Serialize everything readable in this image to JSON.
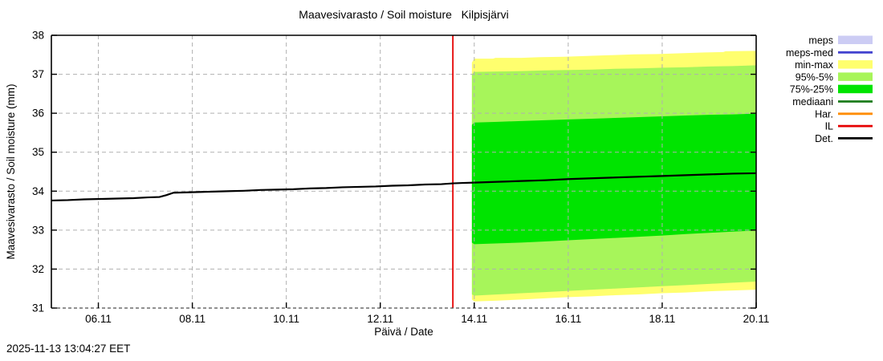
{
  "footer": {
    "timestamp": "2025-11-13 13:04:27 EET"
  },
  "chart_data": {
    "type": "line",
    "title": "Maavesivarasto / Soil moisture   Kilpisjärvi",
    "xlabel": "Päivä / Date",
    "ylabel": "Maavesivarasto / Soil moisture (mm)",
    "ylim": [
      31,
      38
    ],
    "x_range_days": [
      0,
      15
    ],
    "x_origin_note": "day 0 = 05.11 00:00",
    "grid": true,
    "legend_position": "outside-right-top",
    "colors": {
      "grid": "#b0b0b0",
      "axis": "#000000",
      "background": "#ffffff"
    },
    "y_ticks": [
      31,
      32,
      33,
      34,
      35,
      36,
      37,
      38
    ],
    "x_ticks": [
      {
        "day": 1,
        "label": "06.11"
      },
      {
        "day": 3,
        "label": "08.11"
      },
      {
        "day": 5,
        "label": "10.11"
      },
      {
        "day": 7,
        "label": "12.11"
      },
      {
        "day": 9,
        "label": "14.11"
      },
      {
        "day": 11,
        "label": "16.11"
      },
      {
        "day": 13,
        "label": "18.11"
      },
      {
        "day": 15,
        "label": "20.11"
      }
    ],
    "now_line": {
      "day": 8.545,
      "color": "#e60000",
      "label": "IL"
    },
    "bands": [
      {
        "label": "min-max",
        "color": "#ffff6e",
        "upper": [
          [
            8.95,
            37.3
          ],
          [
            9.0,
            37.4
          ],
          [
            9.4,
            37.4
          ],
          [
            9.45,
            37.42
          ],
          [
            10.0,
            37.42
          ],
          [
            10.4,
            37.44
          ],
          [
            10.9,
            37.45
          ],
          [
            11.4,
            37.47
          ],
          [
            11.9,
            37.49
          ],
          [
            12.4,
            37.51
          ],
          [
            12.9,
            37.52
          ],
          [
            13.4,
            37.54
          ],
          [
            13.9,
            37.56
          ],
          [
            14.3,
            37.57
          ],
          [
            14.35,
            37.59
          ],
          [
            15,
            37.6
          ]
        ],
        "lower": [
          [
            8.95,
            31.22
          ],
          [
            9.0,
            31.17
          ],
          [
            9.5,
            31.19
          ],
          [
            10,
            31.22
          ],
          [
            10.5,
            31.25
          ],
          [
            11,
            31.28
          ],
          [
            11.5,
            31.3
          ],
          [
            12,
            31.33
          ],
          [
            12.5,
            31.35
          ],
          [
            13,
            31.38
          ],
          [
            13.5,
            31.4
          ],
          [
            14,
            31.43
          ],
          [
            14.5,
            31.45
          ],
          [
            15,
            31.47
          ]
        ]
      },
      {
        "label": "95%-5%",
        "color": "#a7f55a",
        "upper": [
          [
            8.95,
            37.0
          ],
          [
            9.0,
            37.06
          ],
          [
            9.5,
            37.07
          ],
          [
            10,
            37.08
          ],
          [
            10.5,
            37.1
          ],
          [
            11,
            37.11
          ],
          [
            11.5,
            37.12
          ],
          [
            12,
            37.14
          ],
          [
            12.5,
            37.15
          ],
          [
            13,
            37.17
          ],
          [
            13.5,
            37.18
          ],
          [
            14,
            37.2
          ],
          [
            14.5,
            37.21
          ],
          [
            15,
            37.23
          ]
        ],
        "lower": [
          [
            8.95,
            31.35
          ],
          [
            9.0,
            31.32
          ],
          [
            9.5,
            31.35
          ],
          [
            10,
            31.38
          ],
          [
            10.5,
            31.41
          ],
          [
            11,
            31.44
          ],
          [
            11.5,
            31.47
          ],
          [
            12,
            31.5
          ],
          [
            12.5,
            31.53
          ],
          [
            13,
            31.56
          ],
          [
            13.5,
            31.59
          ],
          [
            14,
            31.62
          ],
          [
            14.5,
            31.65
          ],
          [
            15,
            31.68
          ]
        ]
      },
      {
        "label": "75%-25%",
        "color": "#00e400",
        "upper": [
          [
            8.95,
            35.7
          ],
          [
            9.0,
            35.76
          ],
          [
            9.5,
            35.78
          ],
          [
            10,
            35.8
          ],
          [
            10.5,
            35.82
          ],
          [
            11,
            35.84
          ],
          [
            11.5,
            35.86
          ],
          [
            12,
            35.88
          ],
          [
            12.5,
            35.9
          ],
          [
            13,
            35.92
          ],
          [
            13.5,
            35.94
          ],
          [
            14,
            35.96
          ],
          [
            14.5,
            35.97
          ],
          [
            15,
            35.99
          ]
        ],
        "lower": [
          [
            8.95,
            32.68
          ],
          [
            9.0,
            32.64
          ],
          [
            9.5,
            32.66
          ],
          [
            10,
            32.68
          ],
          [
            10.5,
            32.71
          ],
          [
            11,
            32.74
          ],
          [
            11.5,
            32.77
          ],
          [
            12,
            32.8
          ],
          [
            12.5,
            32.83
          ],
          [
            13,
            32.86
          ],
          [
            13.5,
            32.9
          ],
          [
            14,
            32.93
          ],
          [
            14.5,
            32.96
          ],
          [
            15,
            32.99
          ]
        ]
      }
    ],
    "series": [
      {
        "name": "Det. observed",
        "color": "#000000",
        "points": [
          [
            0,
            33.76
          ],
          [
            0.35,
            33.77
          ],
          [
            0.7,
            33.79
          ],
          [
            1.05,
            33.8
          ],
          [
            1.4,
            33.81
          ],
          [
            1.75,
            33.82
          ],
          [
            2.05,
            33.84
          ],
          [
            2.3,
            33.85
          ],
          [
            2.45,
            33.9
          ],
          [
            2.6,
            33.96
          ],
          [
            2.9,
            33.97
          ],
          [
            3.2,
            33.98
          ],
          [
            3.5,
            33.99
          ],
          [
            3.8,
            34.0
          ],
          [
            4.1,
            34.01
          ],
          [
            4.45,
            34.03
          ],
          [
            4.8,
            34.04
          ],
          [
            5.15,
            34.05
          ],
          [
            5.5,
            34.07
          ],
          [
            5.85,
            34.08
          ],
          [
            6.2,
            34.1
          ],
          [
            6.55,
            34.11
          ],
          [
            6.9,
            34.12
          ],
          [
            7.25,
            34.14
          ],
          [
            7.6,
            34.15
          ],
          [
            7.95,
            34.17
          ],
          [
            8.3,
            34.18
          ],
          [
            8.545,
            34.2
          ],
          [
            8.75,
            34.21
          ],
          [
            9.0,
            34.22
          ]
        ]
      },
      {
        "name": "Det. forecast",
        "color": "#000000",
        "points": [
          [
            9.0,
            34.22
          ],
          [
            9.5,
            34.24
          ],
          [
            10,
            34.26
          ],
          [
            10.5,
            34.28
          ],
          [
            11,
            34.31
          ],
          [
            11.5,
            34.33
          ],
          [
            12,
            34.35
          ],
          [
            12.5,
            34.37
          ],
          [
            13,
            34.39
          ],
          [
            13.5,
            34.41
          ],
          [
            14,
            34.43
          ],
          [
            14.5,
            34.45
          ],
          [
            15,
            34.46
          ]
        ]
      }
    ],
    "legend": [
      {
        "label": "meps",
        "type": "band",
        "color": "#ccccf4"
      },
      {
        "label": "meps-med",
        "type": "line",
        "color": "#4343cf"
      },
      {
        "label": "min-max",
        "type": "band",
        "color": "#ffff6e"
      },
      {
        "label": "95%-5%",
        "type": "band",
        "color": "#a7f55a"
      },
      {
        "label": "75%-25%",
        "type": "band",
        "color": "#00e400"
      },
      {
        "label": "mediaani",
        "type": "line",
        "color": "#1c7c1c"
      },
      {
        "label": "Har.",
        "type": "line",
        "color": "#ff8c00"
      },
      {
        "label": "IL",
        "type": "line",
        "color": "#e60000"
      },
      {
        "label": "Det.",
        "type": "line",
        "color": "#000000"
      }
    ]
  }
}
